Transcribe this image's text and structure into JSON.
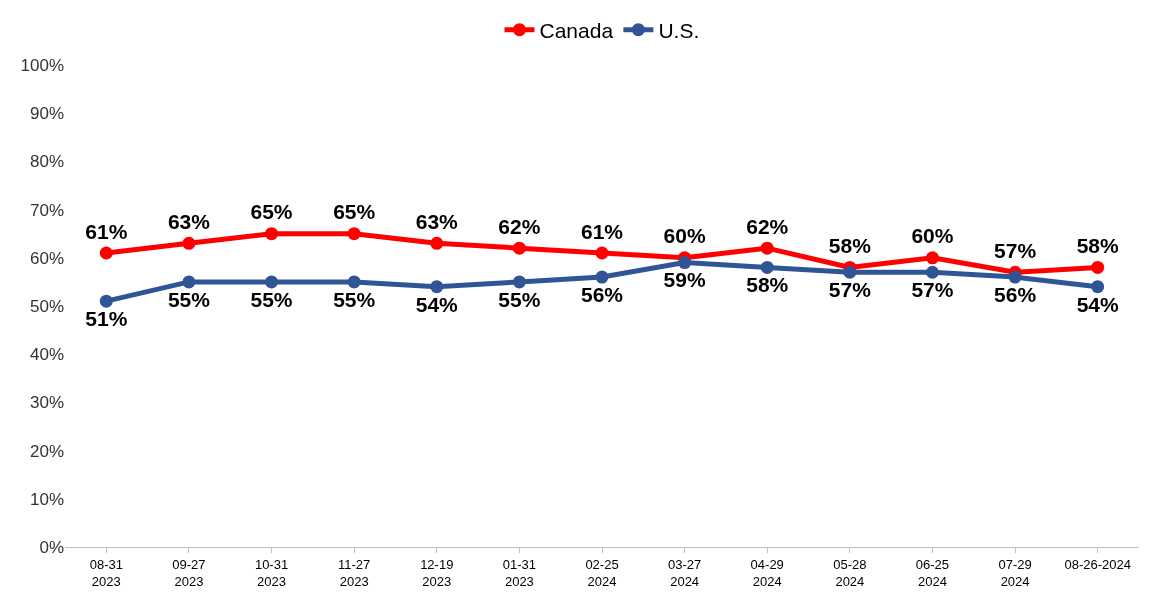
{
  "chart_data": {
    "type": "line",
    "categories": [
      "08-31\n2023",
      "09-27\n2023",
      "10-31\n2023",
      "11-27\n2023",
      "12-19\n2023",
      "01-31\n2023",
      "02-25\n2024",
      "03-27\n2024",
      "04-29\n2024",
      "05-28\n2024",
      "06-25\n2024",
      "07-29\n2024",
      "08-26-2024"
    ],
    "series": [
      {
        "name": "Canada",
        "color": "#ff0000",
        "values": [
          61,
          63,
          65,
          65,
          63,
          62,
          61,
          60,
          62,
          58,
          60,
          57,
          58
        ],
        "value_labels": [
          "61%",
          "63%",
          "65%",
          "65%",
          "63%",
          "62%",
          "61%",
          "60%",
          "62%",
          "58%",
          "60%",
          "57%",
          "58%"
        ]
      },
      {
        "name": "U.S.",
        "color": "#2f5597",
        "values": [
          51,
          55,
          55,
          55,
          54,
          55,
          56,
          59,
          58,
          57,
          57,
          56,
          54
        ],
        "value_labels": [
          "51%",
          "55%",
          "55%",
          "55%",
          "54%",
          "55%",
          "56%",
          "59%",
          "58%",
          "57%",
          "57%",
          "56%",
          "54%"
        ]
      }
    ],
    "ylim": [
      0,
      100
    ],
    "yticks": [
      {
        "value": 0,
        "label": "0%"
      },
      {
        "value": 10,
        "label": "10%"
      },
      {
        "value": 20,
        "label": "20%"
      },
      {
        "value": 30,
        "label": "30%"
      },
      {
        "value": 40,
        "label": "40%"
      },
      {
        "value": 50,
        "label": "50%"
      },
      {
        "value": 60,
        "label": "60%"
      },
      {
        "value": 70,
        "label": "70%"
      },
      {
        "value": 80,
        "label": "80%"
      },
      {
        "value": 90,
        "label": "90%"
      },
      {
        "value": 100,
        "label": "100%"
      }
    ],
    "legend": "top",
    "marker": "circle",
    "line_style": "solid"
  }
}
